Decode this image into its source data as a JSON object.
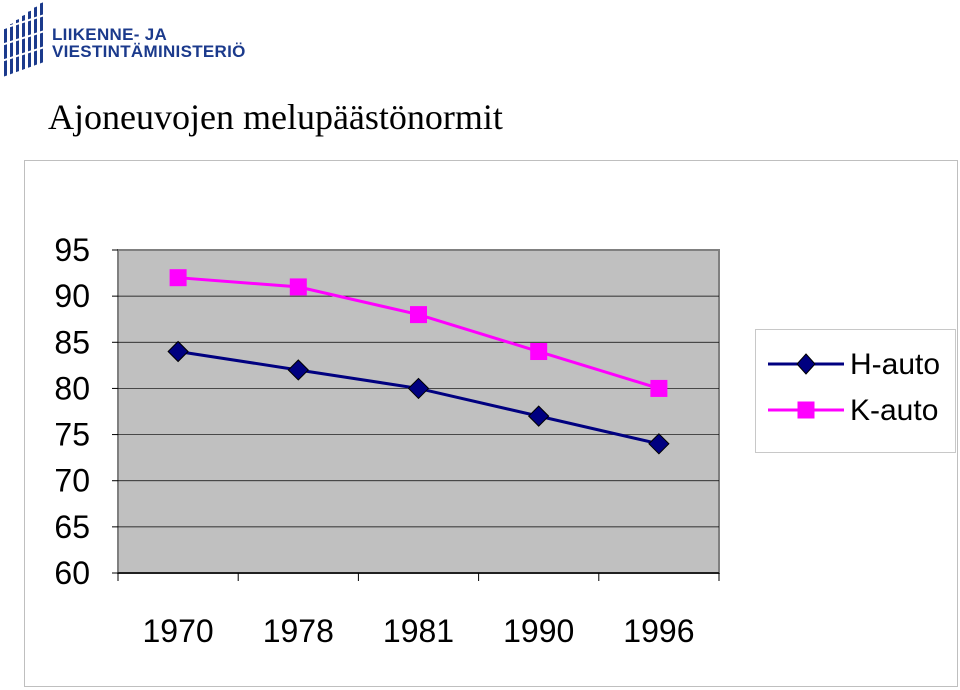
{
  "header": {
    "logo_line1": "LIIKENNE- JA",
    "logo_line2": "VIESTINTÄMINISTERIÖ",
    "title": "Ajoneuvojen melupäästönormit"
  },
  "colors": {
    "plot_bg": "#c0c0c0",
    "h_auto": "#000080",
    "k_auto": "#ff00ff",
    "logo": "#1b3a8c"
  },
  "chart_data": {
    "type": "line",
    "categories": [
      "1970",
      "1978",
      "1981",
      "1990",
      "1996"
    ],
    "series": [
      {
        "name": "H-auto",
        "values": [
          84,
          82,
          80,
          77,
          74
        ],
        "marker": "diamond",
        "color": "#000080"
      },
      {
        "name": "K-auto",
        "values": [
          92,
          91,
          88,
          84,
          80
        ],
        "marker": "square",
        "color": "#ff00ff"
      }
    ],
    "y_ticks": [
      "95",
      "90",
      "85",
      "80",
      "75",
      "70",
      "65",
      "60"
    ],
    "ylim": [
      60,
      95
    ],
    "grid": true,
    "legend": "right"
  }
}
